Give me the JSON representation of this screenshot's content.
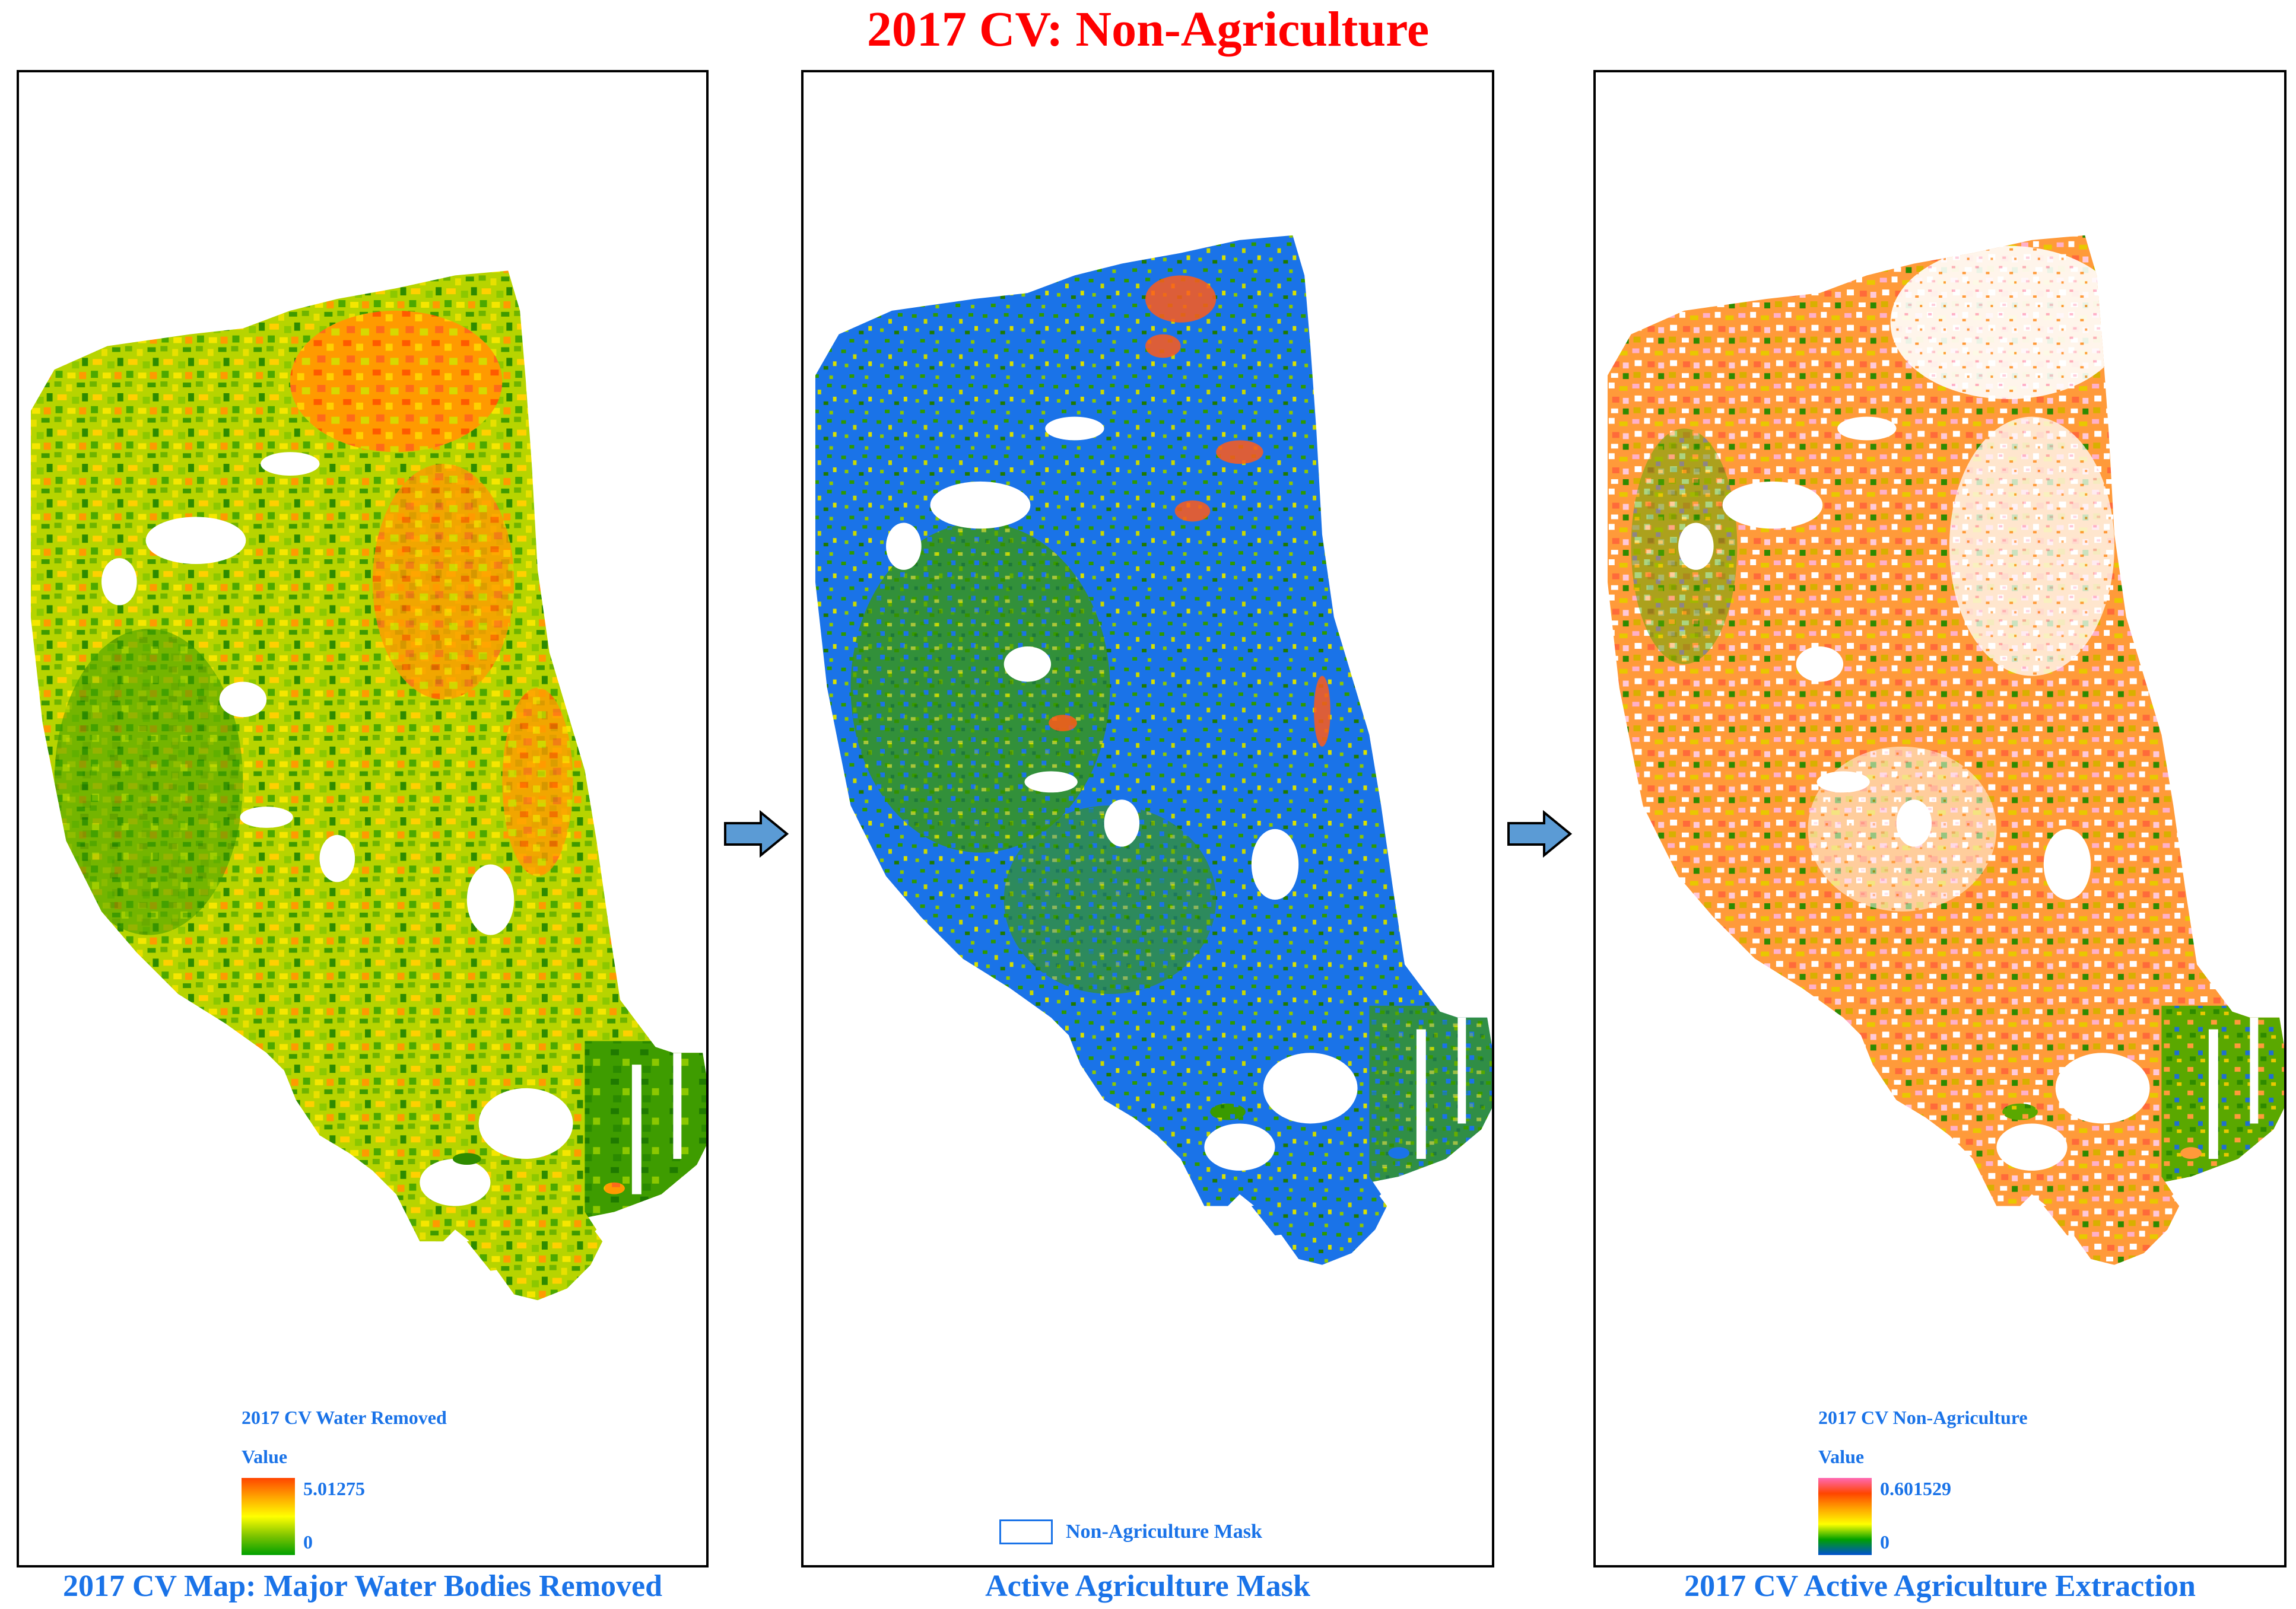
{
  "title": "2017 CV: Non-Agriculture",
  "colors": {
    "title": "#ff0000",
    "caption": "#1a73e8",
    "legend_text": "#1a73e8",
    "mask_blue": "#1a73e8",
    "arrow_fill": "#5b9bd5",
    "frame": "#000000"
  },
  "panels": [
    {
      "caption": "2017 CV Map: Major Water Bodies Removed",
      "legend": {
        "title": "2017 CV Water Removed",
        "value_label": "Value",
        "max": "5.01275",
        "min": "0",
        "ramp_colors": [
          "#ff4500",
          "#ffa500",
          "#ffff00",
          "#7fc400",
          "#00a000"
        ]
      }
    },
    {
      "caption": "Active Agriculture Mask",
      "legend": {
        "mask_label": "Non-Agriculture Mask"
      }
    },
    {
      "caption": "2017 CV Active Agriculture Extraction",
      "legend": {
        "title": "2017 CV Non-Agriculture",
        "value_label": "Value",
        "max": "0.601529",
        "min": "0",
        "ramp_colors": [
          "#ff69b4",
          "#ff4500",
          "#ffa500",
          "#ffff00",
          "#00a000",
          "#0050d0"
        ]
      }
    }
  ],
  "icons": {
    "arrow1": "right-arrow-icon",
    "arrow2": "right-arrow-icon"
  }
}
